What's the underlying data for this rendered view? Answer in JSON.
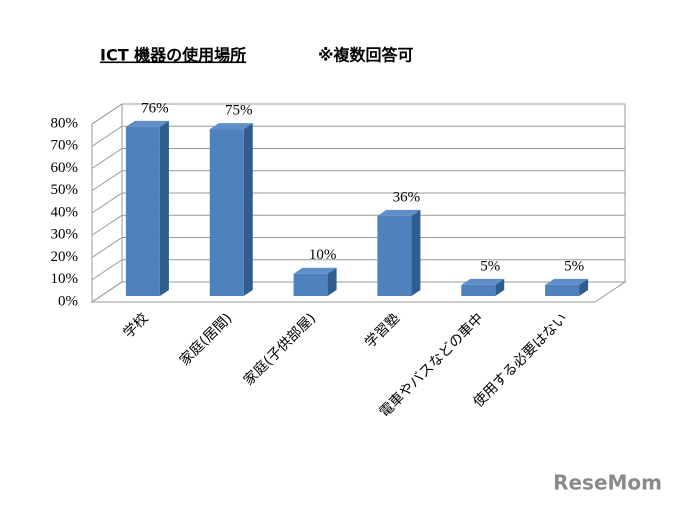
{
  "chart_data": {
    "type": "bar3d",
    "title": "ICT 機器の使用場所",
    "subtitle": "※複数回答可",
    "categories": [
      "学校",
      "家庭(居間)",
      "家庭(子供部屋)",
      "学習塾",
      "電車やバスなどの車中",
      "使用する必要はない"
    ],
    "values": [
      76,
      75,
      10,
      36,
      5,
      5
    ],
    "value_labels": [
      "76%",
      "75%",
      "10%",
      "36%",
      "5%",
      "5%"
    ],
    "color": "#4f81bd",
    "ylim": [
      0,
      80
    ],
    "yticks": [
      {
        "value": 0,
        "label": "0%"
      },
      {
        "value": 10,
        "label": "10%"
      },
      {
        "value": 20,
        "label": "20%"
      },
      {
        "value": 30,
        "label": "30%"
      },
      {
        "value": 40,
        "label": "40%"
      },
      {
        "value": 50,
        "label": "50%"
      },
      {
        "value": 60,
        "label": "60%"
      },
      {
        "value": 70,
        "label": "70%"
      },
      {
        "value": 80,
        "label": "80%"
      }
    ],
    "grid": true
  },
  "watermark": "ReseMom"
}
